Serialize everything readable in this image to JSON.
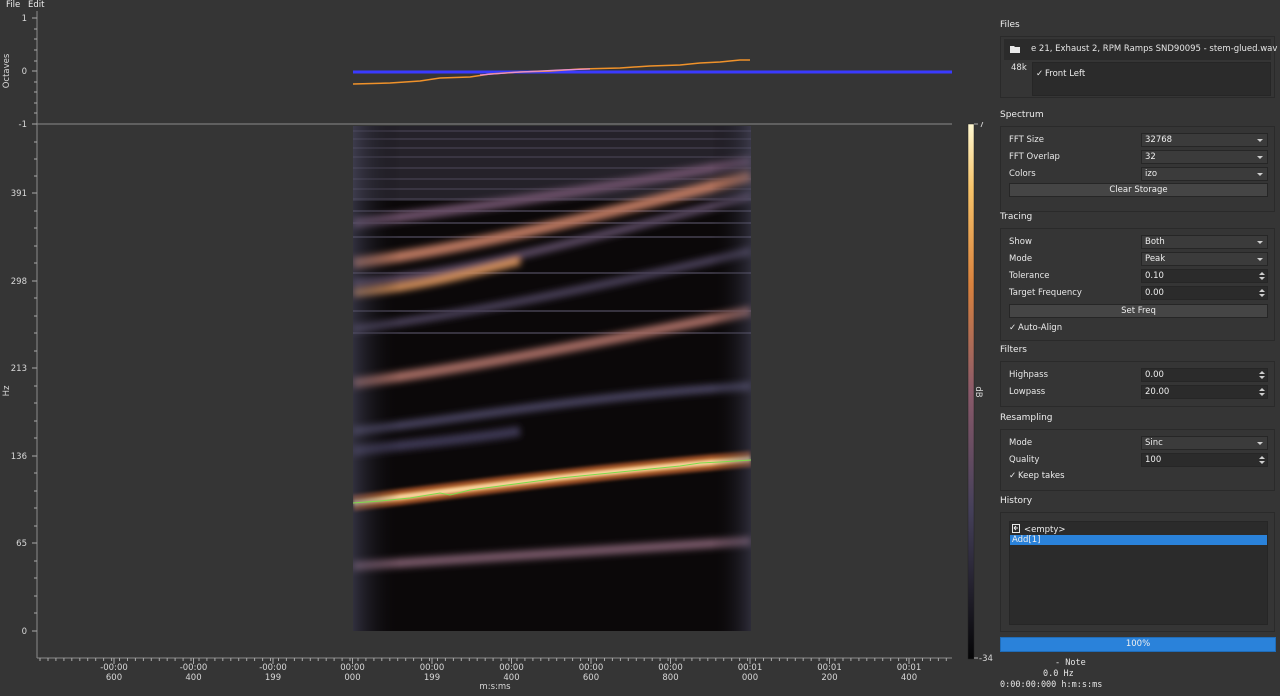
{
  "menu": {
    "file": "File",
    "edit": "Edit"
  },
  "plot": {
    "octaves_axis": {
      "label": "Octaves",
      "ticks": [
        "1",
        "0",
        "-1"
      ]
    },
    "hz_axis": {
      "label": "Hz",
      "ticks": [
        "391",
        "298",
        "213",
        "136",
        "65",
        "0"
      ]
    },
    "time_axis": {
      "label": "m:s:ms",
      "ticks": [
        {
          "top": "-00:00",
          "bottom": "600"
        },
        {
          "top": "-00:00",
          "bottom": "400"
        },
        {
          "top": "-00:00",
          "bottom": "199"
        },
        {
          "top": "00:00",
          "bottom": "000"
        },
        {
          "top": "00:00",
          "bottom": "199"
        },
        {
          "top": "00:00",
          "bottom": "400"
        },
        {
          "top": "00:00",
          "bottom": "600"
        },
        {
          "top": "00:00",
          "bottom": "800"
        },
        {
          "top": "00:01",
          "bottom": "000"
        },
        {
          "top": "00:01",
          "bottom": "200"
        },
        {
          "top": "00:01",
          "bottom": "400"
        }
      ]
    },
    "colorbar": {
      "label": "dB",
      "max": "7",
      "min": "-34"
    },
    "colors": {
      "trace_orange": "#f0922a",
      "trace_pink": "#e98fd0",
      "reference_blue": "#3a3aff",
      "peak_green": "#7ddc4a"
    }
  },
  "panel": {
    "files": {
      "title": "Files",
      "filename": "e 21, Exhaust 2, RPM Ramps SND90095 - stem-glued.wav",
      "rate": "48k",
      "channel": "Front Left",
      "channel_checked": true
    },
    "spectrum": {
      "title": "Spectrum",
      "fft_size_label": "FFT Size",
      "fft_size": "32768",
      "fft_overlap_label": "FFT Overlap",
      "fft_overlap": "32",
      "colors_label": "Colors",
      "colors": "izo",
      "clear_button": "Clear Storage"
    },
    "tracing": {
      "title": "Tracing",
      "show_label": "Show",
      "show": "Both",
      "mode_label": "Mode",
      "mode": "Peak",
      "tolerance_label": "Tolerance",
      "tolerance": "0.10",
      "target_label": "Target Frequency",
      "target": "0.00",
      "set_freq_button": "Set Freq",
      "auto_align": "Auto-Align",
      "auto_align_checked": true
    },
    "filters": {
      "title": "Filters",
      "highpass_label": "Highpass",
      "highpass": "0.00",
      "lowpass_label": "Lowpass",
      "lowpass": "20.00"
    },
    "resampling": {
      "title": "Resampling",
      "mode_label": "Mode",
      "mode": "Sinc",
      "quality_label": "Quality",
      "quality": "100",
      "keep_takes": "Keep takes",
      "keep_takes_checked": true
    },
    "history": {
      "title": "History",
      "items": [
        "<empty>",
        "Add[1]"
      ],
      "selected_index": 1
    },
    "progress": "100%",
    "readout": {
      "note": "- Note",
      "hz": "0.0 Hz",
      "time": "0:00:00:000 h:m:s:ms"
    }
  }
}
